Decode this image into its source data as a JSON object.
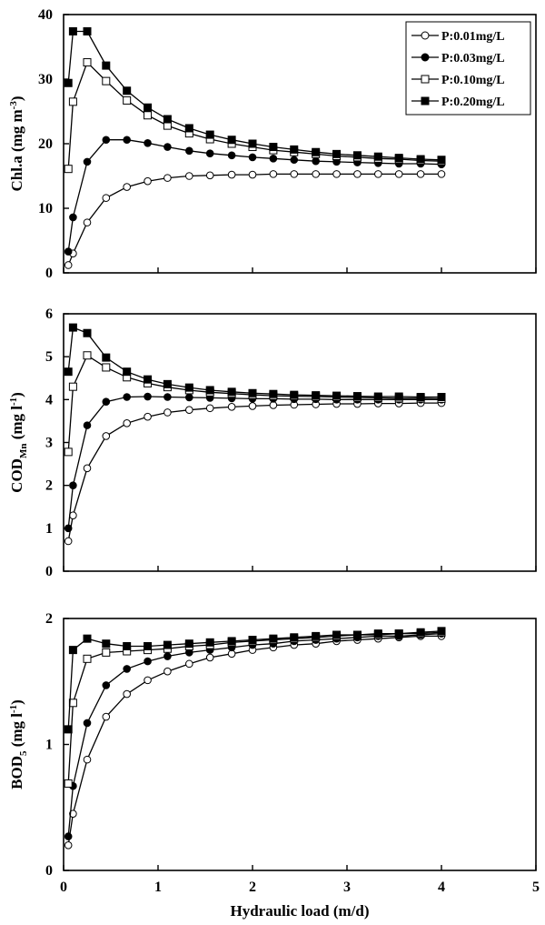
{
  "colors": {
    "stroke": "#000000",
    "open_marker_fill": "#ffffff",
    "filled_marker_fill": "#000000"
  },
  "legend": {
    "placement": "top-right",
    "panel": 0
  },
  "chart_data": [
    {
      "type": "line",
      "ylabel": "Chl.a (mg m⁻³)",
      "xlabel": "",
      "xlim": [
        0,
        5
      ],
      "ylim": [
        0,
        40
      ],
      "xticks": [
        "0",
        "1",
        "2",
        "3",
        "4",
        "5"
      ],
      "yticks": [
        "0",
        "10",
        "20",
        "30",
        "40"
      ],
      "show_x_tick_labels": false,
      "grid": false,
      "series": [
        {
          "name": "P:0.01mg/L",
          "marker": "circle",
          "fill": "open",
          "x": [
            0.05,
            0.1,
            0.25,
            0.45,
            0.67,
            0.89,
            1.1,
            1.33,
            1.55,
            1.78,
            2.0,
            2.22,
            2.44,
            2.67,
            2.89,
            3.11,
            3.33,
            3.55,
            3.78,
            4.0
          ],
          "y": [
            1.2,
            3.0,
            7.8,
            11.6,
            13.3,
            14.2,
            14.7,
            15.0,
            15.1,
            15.2,
            15.2,
            15.3,
            15.3,
            15.3,
            15.3,
            15.3,
            15.3,
            15.3,
            15.3,
            15.3
          ]
        },
        {
          "name": "P:0.03mg/L",
          "marker": "circle",
          "fill": "filled",
          "x": [
            0.05,
            0.1,
            0.25,
            0.45,
            0.67,
            0.89,
            1.1,
            1.33,
            1.55,
            1.78,
            2.0,
            2.22,
            2.44,
            2.67,
            2.89,
            3.11,
            3.33,
            3.55,
            3.78,
            4.0
          ],
          "y": [
            3.3,
            8.6,
            17.2,
            20.6,
            20.6,
            20.1,
            19.5,
            18.9,
            18.5,
            18.2,
            17.9,
            17.7,
            17.5,
            17.3,
            17.2,
            17.1,
            17.0,
            16.9,
            16.9,
            16.8
          ]
        },
        {
          "name": "P:0.10mg/L",
          "marker": "square",
          "fill": "open",
          "x": [
            0.05,
            0.1,
            0.25,
            0.45,
            0.67,
            0.89,
            1.1,
            1.33,
            1.55,
            1.78,
            2.0,
            2.22,
            2.44,
            2.67,
            2.89,
            3.11,
            3.33,
            3.55,
            3.78,
            4.0
          ],
          "y": [
            16.1,
            26.5,
            32.6,
            29.7,
            26.7,
            24.4,
            22.8,
            21.6,
            20.7,
            20.0,
            19.5,
            19.0,
            18.7,
            18.4,
            18.1,
            17.9,
            17.7,
            17.6,
            17.4,
            17.3
          ]
        },
        {
          "name": "P:0.20mg/L",
          "marker": "square",
          "fill": "filled",
          "x": [
            0.05,
            0.1,
            0.25,
            0.45,
            0.67,
            0.89,
            1.1,
            1.33,
            1.55,
            1.78,
            2.0,
            2.22,
            2.44,
            2.67,
            2.89,
            3.11,
            3.33,
            3.55,
            3.78,
            4.0
          ],
          "y": [
            29.4,
            37.4,
            37.4,
            32.1,
            28.2,
            25.6,
            23.8,
            22.4,
            21.4,
            20.6,
            20.0,
            19.5,
            19.1,
            18.7,
            18.4,
            18.2,
            18.0,
            17.8,
            17.6,
            17.5
          ]
        }
      ]
    },
    {
      "type": "line",
      "ylabel": "COD_Mn (mg l⁻¹)",
      "xlabel": "",
      "xlim": [
        0,
        5
      ],
      "ylim": [
        0,
        6
      ],
      "xticks": [
        "0",
        "1",
        "2",
        "3",
        "4",
        "5"
      ],
      "yticks": [
        "0",
        "1",
        "2",
        "3",
        "4",
        "5",
        "6"
      ],
      "show_x_tick_labels": false,
      "grid": false,
      "series": [
        {
          "name": "P:0.01mg/L",
          "marker": "circle",
          "fill": "open",
          "x": [
            0.05,
            0.1,
            0.25,
            0.45,
            0.67,
            0.89,
            1.1,
            1.33,
            1.55,
            1.78,
            2.0,
            2.22,
            2.44,
            2.67,
            2.89,
            3.11,
            3.33,
            3.55,
            3.78,
            4.0
          ],
          "y": [
            0.7,
            1.3,
            2.4,
            3.15,
            3.45,
            3.6,
            3.7,
            3.76,
            3.8,
            3.83,
            3.85,
            3.87,
            3.88,
            3.89,
            3.9,
            3.9,
            3.91,
            3.91,
            3.92,
            3.92
          ]
        },
        {
          "name": "P:0.03mg/L",
          "marker": "circle",
          "fill": "filled",
          "x": [
            0.05,
            0.1,
            0.25,
            0.45,
            0.67,
            0.89,
            1.1,
            1.33,
            1.55,
            1.78,
            2.0,
            2.22,
            2.44,
            2.67,
            2.89,
            3.11,
            3.33,
            3.55,
            3.78,
            4.0
          ],
          "y": [
            1.0,
            2.0,
            3.4,
            3.95,
            4.06,
            4.07,
            4.06,
            4.05,
            4.04,
            4.03,
            4.02,
            4.02,
            4.01,
            4.01,
            4.0,
            4.0,
            4.0,
            4.0,
            4.0,
            4.0
          ]
        },
        {
          "name": "P:0.10mg/L",
          "marker": "square",
          "fill": "open",
          "x": [
            0.05,
            0.1,
            0.25,
            0.45,
            0.67,
            0.89,
            1.1,
            1.33,
            1.55,
            1.78,
            2.0,
            2.22,
            2.44,
            2.67,
            2.89,
            3.11,
            3.33,
            3.55,
            3.78,
            4.0
          ],
          "y": [
            2.78,
            4.3,
            5.03,
            4.75,
            4.52,
            4.38,
            4.29,
            4.22,
            4.17,
            4.14,
            4.11,
            4.09,
            4.08,
            4.07,
            4.06,
            4.05,
            4.04,
            4.03,
            4.03,
            4.02
          ]
        },
        {
          "name": "P:0.20mg/L",
          "marker": "square",
          "fill": "filled",
          "x": [
            0.05,
            0.1,
            0.25,
            0.45,
            0.67,
            0.89,
            1.1,
            1.33,
            1.55,
            1.78,
            2.0,
            2.22,
            2.44,
            2.67,
            2.89,
            3.11,
            3.33,
            3.55,
            3.78,
            4.0
          ],
          "y": [
            4.65,
            5.68,
            5.55,
            4.98,
            4.65,
            4.47,
            4.36,
            4.28,
            4.22,
            4.18,
            4.15,
            4.13,
            4.11,
            4.1,
            4.09,
            4.08,
            4.07,
            4.07,
            4.06,
            4.06
          ]
        }
      ]
    },
    {
      "type": "line",
      "ylabel": "BOD₅ (mg l⁻¹)",
      "xlabel": "Hydraulic load (m/d)",
      "xlim": [
        0,
        5
      ],
      "ylim": [
        0,
        2
      ],
      "xticks": [
        "0",
        "1",
        "2",
        "3",
        "4",
        "5"
      ],
      "yticks": [
        "0",
        "1",
        "2"
      ],
      "show_x_tick_labels": true,
      "grid": false,
      "series": [
        {
          "name": "P:0.01mg/L",
          "marker": "circle",
          "fill": "open",
          "x": [
            0.05,
            0.1,
            0.25,
            0.45,
            0.67,
            0.89,
            1.1,
            1.33,
            1.55,
            1.78,
            2.0,
            2.22,
            2.44,
            2.67,
            2.89,
            3.11,
            3.33,
            3.55,
            3.78,
            4.0
          ],
          "y": [
            0.2,
            0.45,
            0.88,
            1.22,
            1.4,
            1.51,
            1.58,
            1.64,
            1.69,
            1.72,
            1.75,
            1.77,
            1.79,
            1.8,
            1.82,
            1.83,
            1.84,
            1.85,
            1.86,
            1.86
          ]
        },
        {
          "name": "P:0.03mg/L",
          "marker": "circle",
          "fill": "filled",
          "x": [
            0.05,
            0.1,
            0.25,
            0.45,
            0.67,
            0.89,
            1.1,
            1.33,
            1.55,
            1.78,
            2.0,
            2.22,
            2.44,
            2.67,
            2.89,
            3.11,
            3.33,
            3.55,
            3.78,
            4.0
          ],
          "y": [
            0.27,
            0.67,
            1.17,
            1.47,
            1.6,
            1.66,
            1.7,
            1.73,
            1.75,
            1.77,
            1.79,
            1.8,
            1.82,
            1.83,
            1.84,
            1.85,
            1.86,
            1.86,
            1.87,
            1.88
          ]
        },
        {
          "name": "P:0.10mg/L",
          "marker": "square",
          "fill": "open",
          "x": [
            0.05,
            0.1,
            0.25,
            0.45,
            0.67,
            0.89,
            1.1,
            1.33,
            1.55,
            1.78,
            2.0,
            2.22,
            2.44,
            2.67,
            2.89,
            3.11,
            3.33,
            3.55,
            3.78,
            4.0
          ],
          "y": [
            0.69,
            1.33,
            1.68,
            1.73,
            1.74,
            1.75,
            1.76,
            1.78,
            1.79,
            1.81,
            1.82,
            1.83,
            1.84,
            1.85,
            1.86,
            1.87,
            1.87,
            1.88,
            1.88,
            1.89
          ]
        },
        {
          "name": "P:0.20mg/L",
          "marker": "square",
          "fill": "filled",
          "x": [
            0.05,
            0.1,
            0.25,
            0.45,
            0.67,
            0.89,
            1.1,
            1.33,
            1.55,
            1.78,
            2.0,
            2.22,
            2.44,
            2.67,
            2.89,
            3.11,
            3.33,
            3.55,
            3.78,
            4.0
          ],
          "y": [
            1.12,
            1.75,
            1.84,
            1.8,
            1.78,
            1.78,
            1.79,
            1.8,
            1.81,
            1.82,
            1.83,
            1.84,
            1.85,
            1.86,
            1.87,
            1.87,
            1.88,
            1.88,
            1.89,
            1.9
          ]
        }
      ]
    }
  ]
}
